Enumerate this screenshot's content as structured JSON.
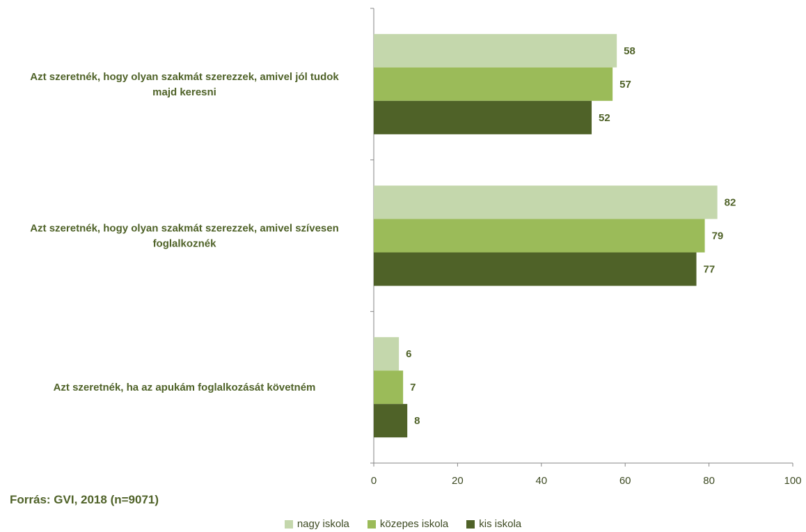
{
  "chart_data": {
    "type": "bar",
    "orientation": "horizontal",
    "categories": [
      "Azt szeretnék, hogy olyan szakmát szerezzek, amivel jól tudok majd keresni",
      "Azt szeretnék, hogy olyan szakmát szerezzek, amivel szívesen foglalkoznék",
      "Azt szeretnék, ha az apukám foglalkozását követném"
    ],
    "category_lines": [
      [
        "Azt szeretnék, hogy olyan szakmát szerezzek, amivel jól tudok",
        "majd keresni"
      ],
      [
        "Azt szeretnék, hogy olyan szakmát szerezzek, amivel szívesen",
        "foglalkoznék"
      ],
      [
        "Azt szeretnék, ha az apukám foglalkozását követném"
      ]
    ],
    "series": [
      {
        "name": "nagy iskola",
        "color": "#c4d7ac",
        "values": [
          58,
          82,
          6
        ]
      },
      {
        "name": "közepes iskola",
        "color": "#9bbb59",
        "values": [
          57,
          79,
          7
        ]
      },
      {
        "name": "kis iskola",
        "color": "#4f6228",
        "values": [
          52,
          77,
          8
        ]
      }
    ],
    "xlim": [
      0,
      100
    ],
    "xticks": [
      0,
      20,
      40,
      60,
      80,
      100
    ],
    "legend_position": "bottom",
    "grid": false,
    "data_labels": true
  },
  "source": "Forrás: GVI, 2018 (n=9071)"
}
